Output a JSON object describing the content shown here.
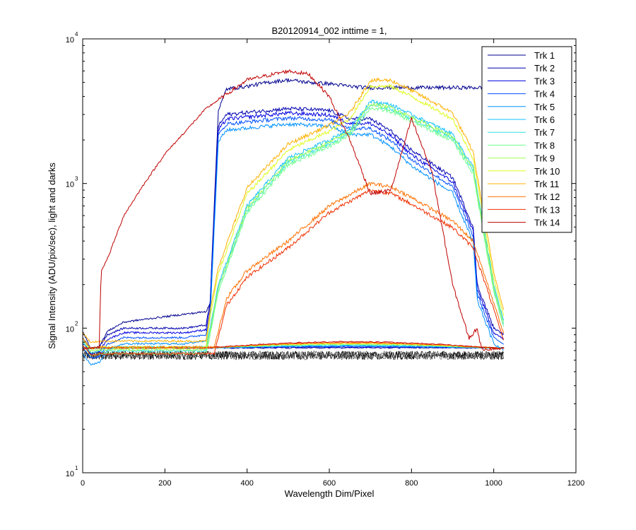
{
  "chart_data": {
    "type": "line",
    "title": "B20120914_002 inttime = 1,",
    "xlabel": "Wavelength Dim/Pixel",
    "ylabel": "Signal Intensity (ADU/pix/sec), light and darks",
    "xlim": [
      0,
      1200
    ],
    "ylim": [
      10,
      10000
    ],
    "yscale": "log",
    "xticks": [
      "0",
      "200",
      "400",
      "600",
      "800",
      "1000",
      "1200"
    ],
    "yticks": [
      {
        "base": "10",
        "exp": "1"
      },
      {
        "base": "10",
        "exp": "2"
      },
      {
        "base": "10",
        "exp": "3"
      },
      {
        "base": "10",
        "exp": "4"
      }
    ],
    "grid": false,
    "legend_position": "top-right",
    "dark_series_color": "#000000",
    "series": [
      {
        "name": "Trk 1",
        "color": "#00008F",
        "group": "blue_high",
        "scale": 1.0
      },
      {
        "name": "Trk 2",
        "color": "#0000AF",
        "group": "blue_low",
        "scale": 1.0
      },
      {
        "name": "Trk 3",
        "color": "#0000DF",
        "group": "blue_low",
        "scale": 0.93
      },
      {
        "name": "Trk 4",
        "color": "#0050FF",
        "group": "blue_low",
        "scale": 0.86
      },
      {
        "name": "Trk 5",
        "color": "#0090FF",
        "group": "blue_low",
        "scale": 0.78
      },
      {
        "name": "Trk 6",
        "color": "#10C0FF",
        "group": "cyan",
        "scale": 1.0
      },
      {
        "name": "Trk 7",
        "color": "#30E0E0",
        "group": "cyan",
        "scale": 0.94
      },
      {
        "name": "Trk 8",
        "color": "#70FF90",
        "group": "cyan",
        "scale": 0.9
      },
      {
        "name": "Trk 9",
        "color": "#A0FF50",
        "group": "cyan",
        "scale": 0.96
      },
      {
        "name": "Trk 10",
        "color": "#DFFF20",
        "group": "yellow",
        "scale": 1.0
      },
      {
        "name": "Trk 11",
        "color": "#FFB000",
        "group": "yellow",
        "scale": 1.1
      },
      {
        "name": "Trk 12",
        "color": "#FF7000",
        "group": "orange",
        "scale": 1.0
      },
      {
        "name": "Trk 13",
        "color": "#EF2F00",
        "group": "orange",
        "scale": 0.9
      },
      {
        "name": "Trk 14",
        "color": "#BF0000",
        "group": "red",
        "scale": 1.0
      }
    ],
    "profiles": {
      "blue_high": [
        [
          0,
          95
        ],
        [
          20,
          72
        ],
        [
          40,
          74
        ],
        [
          60,
          95
        ],
        [
          100,
          110
        ],
        [
          150,
          115
        ],
        [
          200,
          120
        ],
        [
          250,
          125
        ],
        [
          300,
          130
        ],
        [
          310,
          150
        ],
        [
          330,
          3200
        ],
        [
          350,
          4500
        ],
        [
          400,
          4700
        ],
        [
          450,
          5000
        ],
        [
          500,
          5200
        ],
        [
          550,
          5000
        ],
        [
          600,
          4900
        ],
        [
          650,
          4700
        ],
        [
          690,
          4600
        ]
      ],
      "blue_low": [
        [
          0,
          85
        ],
        [
          20,
          72
        ],
        [
          40,
          74
        ],
        [
          60,
          90
        ],
        [
          100,
          100
        ],
        [
          150,
          100
        ],
        [
          200,
          100
        ],
        [
          250,
          100
        ],
        [
          300,
          105
        ],
        [
          310,
          150
        ],
        [
          330,
          2500
        ],
        [
          350,
          3000
        ],
        [
          400,
          3100
        ],
        [
          500,
          3300
        ],
        [
          600,
          3200
        ],
        [
          650,
          2800
        ],
        [
          700,
          2800
        ],
        [
          750,
          2300
        ],
        [
          800,
          1700
        ],
        [
          900,
          1100
        ],
        [
          950,
          500
        ],
        [
          960,
          200
        ],
        [
          1000,
          100
        ],
        [
          1025,
          90
        ]
      ],
      "cyan": [
        [
          0,
          85
        ],
        [
          20,
          72
        ],
        [
          40,
          74
        ],
        [
          100,
          74
        ],
        [
          300,
          74
        ],
        [
          310,
          100
        ],
        [
          330,
          200
        ],
        [
          400,
          700
        ],
        [
          500,
          1500
        ],
        [
          600,
          2000
        ],
        [
          650,
          2400
        ],
        [
          700,
          3700
        ],
        [
          750,
          3500
        ],
        [
          800,
          3000
        ],
        [
          900,
          2200
        ],
        [
          950,
          1300
        ],
        [
          1000,
          200
        ],
        [
          1025,
          110
        ]
      ],
      "yellow": [
        [
          0,
          85
        ],
        [
          20,
          72
        ],
        [
          40,
          74
        ],
        [
          100,
          74
        ],
        [
          300,
          74
        ],
        [
          310,
          120
        ],
        [
          330,
          240
        ],
        [
          400,
          850
        ],
        [
          500,
          1700
        ],
        [
          600,
          2300
        ],
        [
          650,
          2800
        ],
        [
          700,
          4700
        ],
        [
          750,
          4700
        ],
        [
          800,
          4000
        ],
        [
          900,
          2800
        ],
        [
          950,
          1500
        ],
        [
          1000,
          220
        ],
        [
          1025,
          120
        ]
      ],
      "orange": [
        [
          0,
          85
        ],
        [
          20,
          72
        ],
        [
          40,
          74
        ],
        [
          100,
          74
        ],
        [
          320,
          74
        ],
        [
          350,
          160
        ],
        [
          400,
          250
        ],
        [
          500,
          400
        ],
        [
          600,
          700
        ],
        [
          700,
          1000
        ],
        [
          750,
          950
        ],
        [
          800,
          800
        ],
        [
          900,
          550
        ],
        [
          950,
          400
        ],
        [
          1000,
          150
        ],
        [
          1025,
          90
        ]
      ],
      "red": [
        [
          0,
          72
        ],
        [
          40,
          74
        ],
        [
          45,
          250
        ],
        [
          60,
          300
        ],
        [
          100,
          600
        ],
        [
          150,
          1000
        ],
        [
          200,
          1600
        ],
        [
          300,
          3300
        ],
        [
          400,
          5200
        ],
        [
          500,
          6000
        ],
        [
          550,
          5700
        ],
        [
          600,
          4000
        ],
        [
          650,
          2000
        ],
        [
          700,
          850
        ],
        [
          750,
          900
        ],
        [
          800,
          2800
        ],
        [
          850,
          1200
        ],
        [
          900,
          200
        ],
        [
          940,
          85
        ],
        [
          960,
          100
        ],
        [
          970,
          72
        ],
        [
          1025,
          72
        ]
      ]
    },
    "dark_level": 65
  }
}
